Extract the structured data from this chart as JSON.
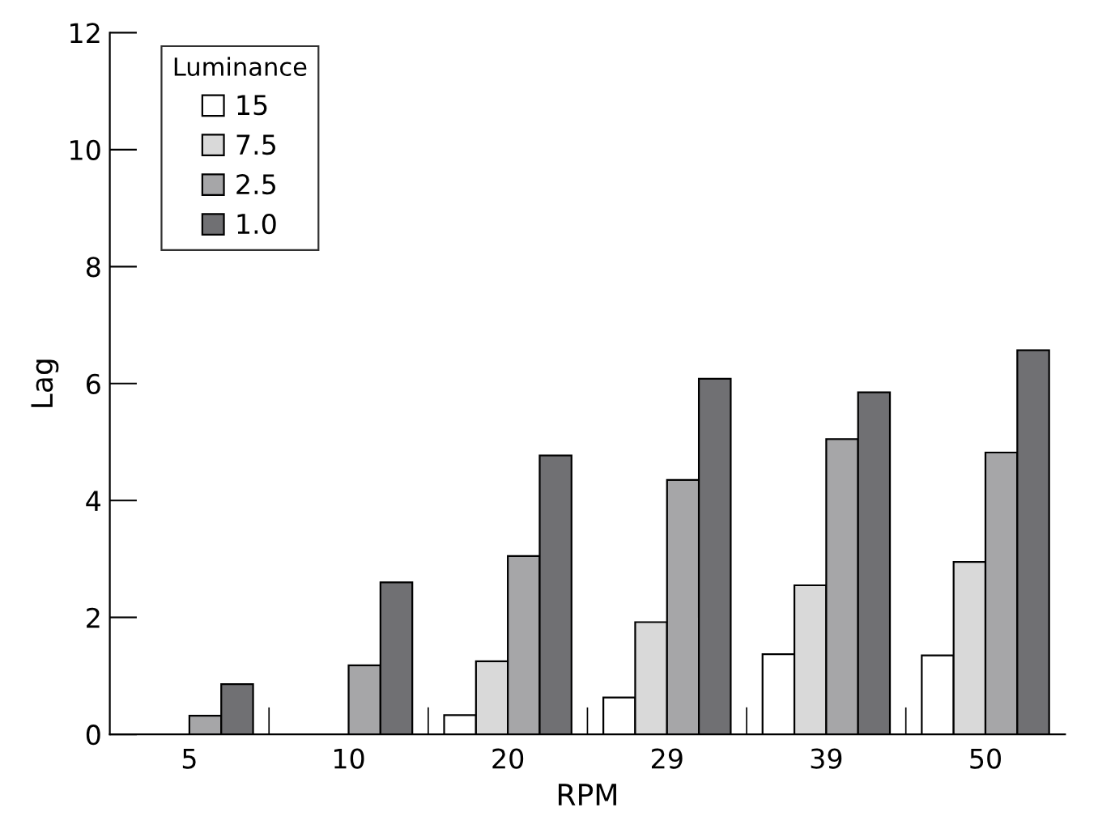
{
  "chart_data": {
    "type": "bar",
    "xlabel": "RPM",
    "ylabel": "Lag",
    "legend_title": "Luminance",
    "legend": "top left",
    "grid": false,
    "categories": [
      "5",
      "10",
      "20",
      "29",
      "39",
      "50"
    ],
    "ylim": [
      0,
      12
    ],
    "yticks": [
      0,
      2,
      4,
      6,
      8,
      10,
      12
    ],
    "series": [
      {
        "name": "15",
        "color": "#ffffff",
        "values": [
          null,
          null,
          0.33,
          0.63,
          1.37,
          1.35
        ]
      },
      {
        "name": "7.5",
        "color": "#d9d9d9",
        "values": [
          null,
          null,
          1.25,
          1.92,
          2.55,
          2.95
        ]
      },
      {
        "name": "2.5",
        "color": "#a6a6a8",
        "values": [
          0.32,
          1.18,
          3.05,
          4.35,
          5.05,
          4.82
        ]
      },
      {
        "name": "1.0",
        "color": "#707073",
        "values": [
          0.86,
          2.6,
          4.77,
          6.08,
          5.85,
          6.57
        ]
      }
    ]
  }
}
